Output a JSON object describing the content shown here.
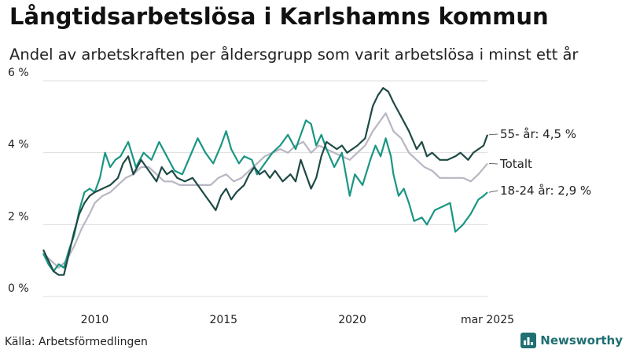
{
  "title": "Långtidsarbetslösa i Karlshamns kommun",
  "subtitle": "Andel av arbetskraften per åldersgrupp som varit arbetslösa i minst ett år",
  "source": "Källa: Arbetsförmedlingen",
  "brand": "Newsworthy",
  "colors": {
    "older": "#1f4a45",
    "total": "#b9b6c3",
    "young": "#1a9683",
    "brand": "#1f6f73"
  },
  "chart_data": {
    "type": "line",
    "ylim": [
      0,
      6
    ],
    "y_ticks": [
      {
        "v": 0,
        "label": "0 %"
      },
      {
        "v": 2,
        "label": "2 %"
      },
      {
        "v": 4,
        "label": "4 %"
      },
      {
        "v": 6,
        "label": "6 %"
      }
    ],
    "x_ticks": [
      {
        "v": 2010.0,
        "label": "2010"
      },
      {
        "v": 2015.0,
        "label": "2015"
      },
      {
        "v": 2020.0,
        "label": "2020"
      },
      {
        "v": 2025.25,
        "label": "mar 2025"
      }
    ],
    "grid": true,
    "series": [
      {
        "id": "older",
        "name": "55- år",
        "end_label": "55- år: 4,5 %",
        "points": [
          [
            2008.0,
            1.3
          ],
          [
            2008.2,
            1.0
          ],
          [
            2008.4,
            0.7
          ],
          [
            2008.6,
            0.6
          ],
          [
            2008.8,
            0.6
          ],
          [
            2008.9,
            0.9
          ],
          [
            2009.0,
            1.2
          ],
          [
            2009.2,
            1.8
          ],
          [
            2009.4,
            2.3
          ],
          [
            2009.6,
            2.6
          ],
          [
            2009.8,
            2.8
          ],
          [
            2010.0,
            2.9
          ],
          [
            2010.3,
            3.0
          ],
          [
            2010.6,
            3.1
          ],
          [
            2010.9,
            3.3
          ],
          [
            2011.1,
            3.7
          ],
          [
            2011.3,
            3.9
          ],
          [
            2011.5,
            3.4
          ],
          [
            2011.8,
            3.8
          ],
          [
            2012.1,
            3.5
          ],
          [
            2012.4,
            3.2
          ],
          [
            2012.6,
            3.6
          ],
          [
            2012.8,
            3.4
          ],
          [
            2013.0,
            3.5
          ],
          [
            2013.2,
            3.3
          ],
          [
            2013.5,
            3.2
          ],
          [
            2013.8,
            3.3
          ],
          [
            2014.0,
            3.1
          ],
          [
            2014.3,
            2.8
          ],
          [
            2014.5,
            2.6
          ],
          [
            2014.7,
            2.4
          ],
          [
            2014.9,
            2.8
          ],
          [
            2015.1,
            3.0
          ],
          [
            2015.3,
            2.7
          ],
          [
            2015.5,
            2.9
          ],
          [
            2015.8,
            3.1
          ],
          [
            2016.0,
            3.4
          ],
          [
            2016.2,
            3.6
          ],
          [
            2016.4,
            3.4
          ],
          [
            2016.6,
            3.5
          ],
          [
            2016.8,
            3.3
          ],
          [
            2017.0,
            3.5
          ],
          [
            2017.3,
            3.2
          ],
          [
            2017.6,
            3.4
          ],
          [
            2017.8,
            3.2
          ],
          [
            2018.0,
            3.8
          ],
          [
            2018.2,
            3.4
          ],
          [
            2018.4,
            3.0
          ],
          [
            2018.6,
            3.3
          ],
          [
            2018.8,
            3.9
          ],
          [
            2019.0,
            4.3
          ],
          [
            2019.2,
            4.2
          ],
          [
            2019.4,
            4.1
          ],
          [
            2019.6,
            4.2
          ],
          [
            2019.8,
            4.0
          ],
          [
            2020.0,
            4.1
          ],
          [
            2020.2,
            4.2
          ],
          [
            2020.5,
            4.4
          ],
          [
            2020.8,
            5.3
          ],
          [
            2021.0,
            5.6
          ],
          [
            2021.2,
            5.8
          ],
          [
            2021.4,
            5.7
          ],
          [
            2021.6,
            5.4
          ],
          [
            2021.9,
            5.0
          ],
          [
            2022.2,
            4.6
          ],
          [
            2022.5,
            4.1
          ],
          [
            2022.7,
            4.3
          ],
          [
            2022.9,
            3.9
          ],
          [
            2023.1,
            4.0
          ],
          [
            2023.4,
            3.8
          ],
          [
            2023.7,
            3.8
          ],
          [
            2024.0,
            3.9
          ],
          [
            2024.2,
            4.0
          ],
          [
            2024.5,
            3.8
          ],
          [
            2024.7,
            4.0
          ],
          [
            2024.9,
            4.1
          ],
          [
            2025.1,
            4.2
          ],
          [
            2025.25,
            4.5
          ]
        ]
      },
      {
        "id": "total",
        "name": "Totalt",
        "end_label": "Totalt",
        "points": [
          [
            2008.0,
            1.2
          ],
          [
            2008.3,
            1.0
          ],
          [
            2008.6,
            0.8
          ],
          [
            2008.9,
            1.0
          ],
          [
            2009.2,
            1.4
          ],
          [
            2009.5,
            1.9
          ],
          [
            2009.8,
            2.3
          ],
          [
            2010.0,
            2.6
          ],
          [
            2010.3,
            2.8
          ],
          [
            2010.6,
            2.9
          ],
          [
            2010.9,
            3.1
          ],
          [
            2011.2,
            3.3
          ],
          [
            2011.5,
            3.4
          ],
          [
            2011.8,
            3.6
          ],
          [
            2012.1,
            3.6
          ],
          [
            2012.4,
            3.4
          ],
          [
            2012.7,
            3.2
          ],
          [
            2013.0,
            3.2
          ],
          [
            2013.3,
            3.1
          ],
          [
            2013.6,
            3.1
          ],
          [
            2013.9,
            3.1
          ],
          [
            2014.2,
            3.1
          ],
          [
            2014.5,
            3.1
          ],
          [
            2014.8,
            3.3
          ],
          [
            2015.1,
            3.4
          ],
          [
            2015.4,
            3.2
          ],
          [
            2015.7,
            3.3
          ],
          [
            2016.0,
            3.5
          ],
          [
            2016.3,
            3.7
          ],
          [
            2016.6,
            3.9
          ],
          [
            2016.9,
            4.0
          ],
          [
            2017.2,
            4.1
          ],
          [
            2017.5,
            4.0
          ],
          [
            2017.8,
            4.2
          ],
          [
            2018.1,
            4.3
          ],
          [
            2018.4,
            4.0
          ],
          [
            2018.7,
            4.2
          ],
          [
            2019.0,
            4.1
          ],
          [
            2019.3,
            4.0
          ],
          [
            2019.6,
            3.9
          ],
          [
            2019.9,
            3.8
          ],
          [
            2020.2,
            4.0
          ],
          [
            2020.5,
            4.2
          ],
          [
            2020.8,
            4.6
          ],
          [
            2021.1,
            4.9
          ],
          [
            2021.3,
            5.1
          ],
          [
            2021.6,
            4.6
          ],
          [
            2021.9,
            4.4
          ],
          [
            2022.2,
            4.0
          ],
          [
            2022.5,
            3.8
          ],
          [
            2022.8,
            3.6
          ],
          [
            2023.1,
            3.5
          ],
          [
            2023.4,
            3.3
          ],
          [
            2023.7,
            3.3
          ],
          [
            2024.0,
            3.3
          ],
          [
            2024.3,
            3.3
          ],
          [
            2024.6,
            3.2
          ],
          [
            2024.9,
            3.4
          ],
          [
            2025.25,
            3.7
          ]
        ]
      },
      {
        "id": "young",
        "name": "18-24 år",
        "end_label": "18-24 år: 2,9 %",
        "points": [
          [
            2008.0,
            1.2
          ],
          [
            2008.2,
            0.9
          ],
          [
            2008.4,
            0.7
          ],
          [
            2008.6,
            0.9
          ],
          [
            2008.8,
            0.8
          ],
          [
            2009.0,
            1.3
          ],
          [
            2009.2,
            1.7
          ],
          [
            2009.4,
            2.4
          ],
          [
            2009.6,
            2.9
          ],
          [
            2009.8,
            3.0
          ],
          [
            2010.0,
            2.9
          ],
          [
            2010.2,
            3.3
          ],
          [
            2010.4,
            4.0
          ],
          [
            2010.6,
            3.6
          ],
          [
            2010.8,
            3.8
          ],
          [
            2011.0,
            3.9
          ],
          [
            2011.3,
            4.3
          ],
          [
            2011.6,
            3.6
          ],
          [
            2011.9,
            4.0
          ],
          [
            2012.2,
            3.8
          ],
          [
            2012.5,
            4.3
          ],
          [
            2012.8,
            3.9
          ],
          [
            2013.1,
            3.5
          ],
          [
            2013.4,
            3.4
          ],
          [
            2013.7,
            3.9
          ],
          [
            2014.0,
            4.4
          ],
          [
            2014.3,
            4.0
          ],
          [
            2014.6,
            3.7
          ],
          [
            2014.9,
            4.2
          ],
          [
            2015.1,
            4.6
          ],
          [
            2015.3,
            4.1
          ],
          [
            2015.6,
            3.7
          ],
          [
            2015.8,
            3.9
          ],
          [
            2016.1,
            3.8
          ],
          [
            2016.3,
            3.4
          ],
          [
            2016.6,
            3.7
          ],
          [
            2016.9,
            4.0
          ],
          [
            2017.2,
            4.2
          ],
          [
            2017.5,
            4.5
          ],
          [
            2017.8,
            4.1
          ],
          [
            2018.0,
            4.5
          ],
          [
            2018.2,
            4.9
          ],
          [
            2018.4,
            4.8
          ],
          [
            2018.6,
            4.2
          ],
          [
            2018.8,
            4.5
          ],
          [
            2019.0,
            4.1
          ],
          [
            2019.3,
            3.6
          ],
          [
            2019.6,
            4.0
          ],
          [
            2019.9,
            2.8
          ],
          [
            2020.1,
            3.4
          ],
          [
            2020.4,
            3.1
          ],
          [
            2020.7,
            3.8
          ],
          [
            2020.9,
            4.2
          ],
          [
            2021.1,
            3.9
          ],
          [
            2021.3,
            4.4
          ],
          [
            2021.5,
            3.9
          ],
          [
            2021.6,
            3.4
          ],
          [
            2021.8,
            2.8
          ],
          [
            2022.0,
            3.0
          ],
          [
            2022.2,
            2.6
          ],
          [
            2022.4,
            2.1
          ],
          [
            2022.7,
            2.2
          ],
          [
            2022.9,
            2.0
          ],
          [
            2023.2,
            2.4
          ],
          [
            2023.5,
            2.5
          ],
          [
            2023.8,
            2.6
          ],
          [
            2024.0,
            1.8
          ],
          [
            2024.3,
            2.0
          ],
          [
            2024.6,
            2.3
          ],
          [
            2024.9,
            2.7
          ],
          [
            2025.1,
            2.8
          ],
          [
            2025.25,
            2.9
          ]
        ]
      }
    ]
  }
}
